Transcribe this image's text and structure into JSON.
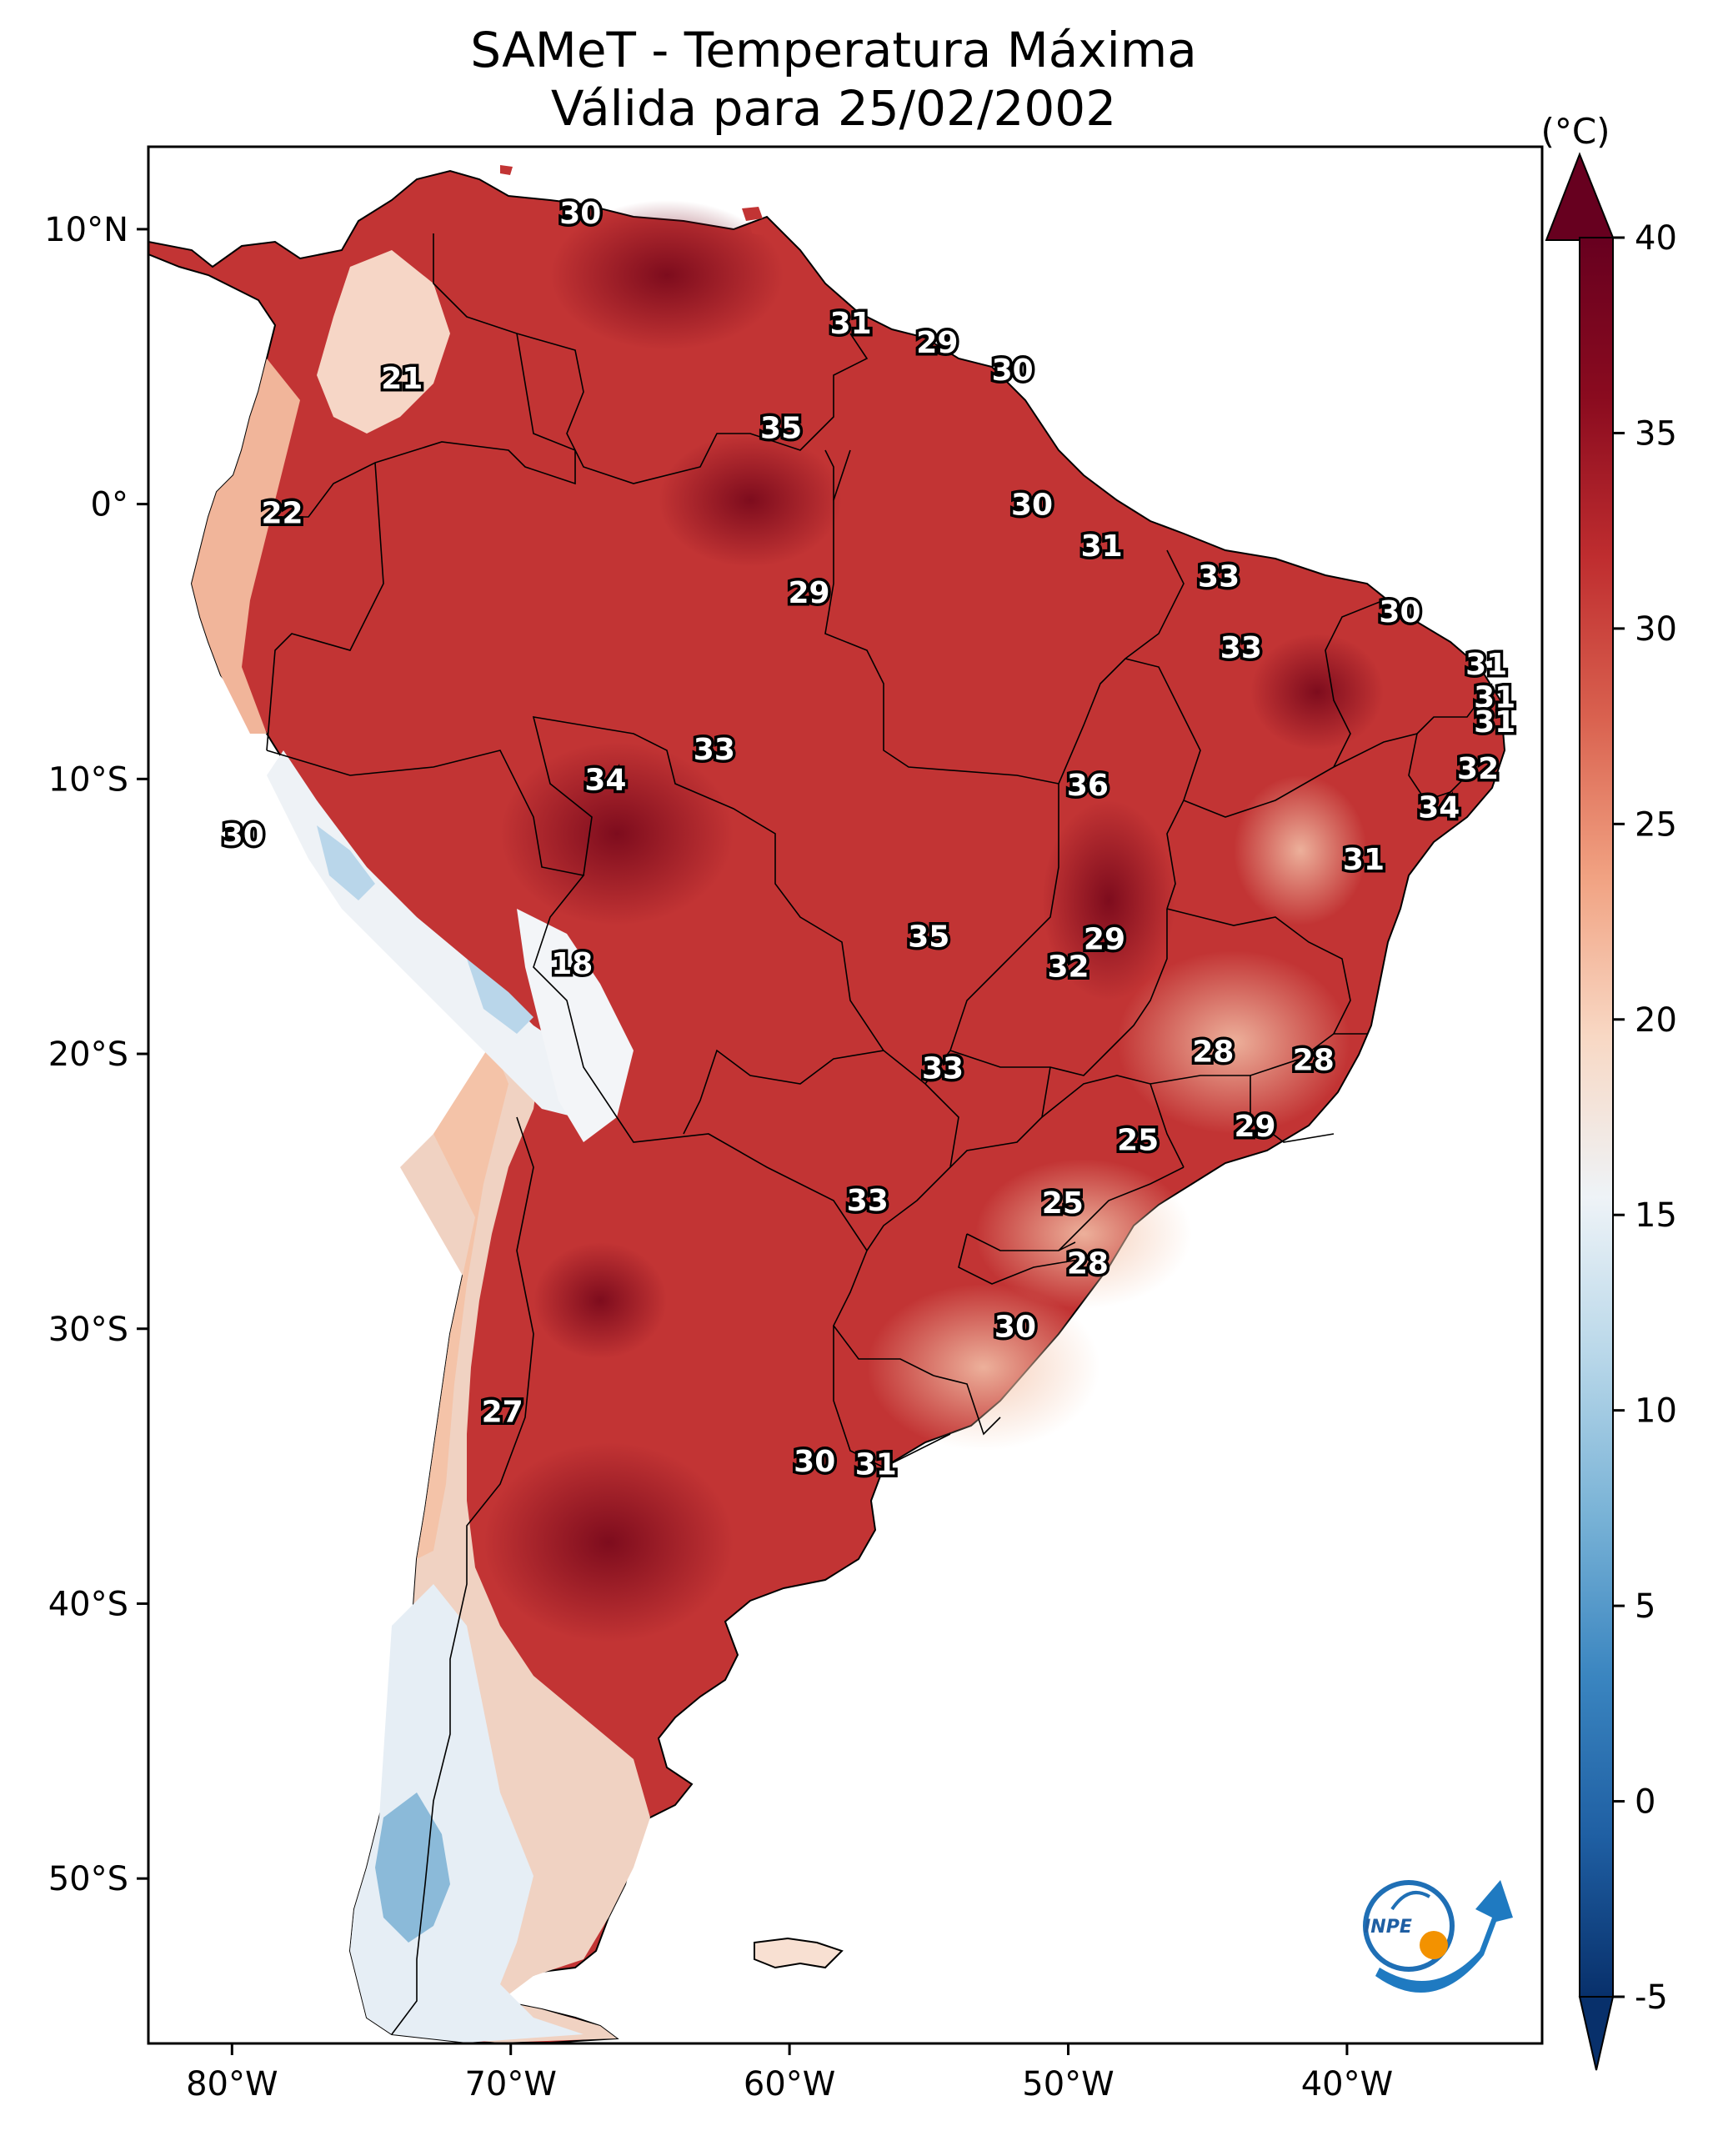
{
  "title_line1": "SAMeT - Temperatura Máxima",
  "title_line2": "Válida para 25/02/2002",
  "colorbar": {
    "unit": "(°C)",
    "min": -5,
    "max": 40,
    "ticks": [
      -5,
      0,
      5,
      10,
      15,
      20,
      25,
      30,
      35,
      40
    ],
    "tick_labels": [
      "-5",
      "0",
      "5",
      "10",
      "15",
      "20",
      "25",
      "30",
      "35",
      "40"
    ],
    "colors": [
      "#08306b",
      "#1f5fa3",
      "#3a85c0",
      "#78b2d6",
      "#b8d7e9",
      "#eef3f7",
      "#f8d8c4",
      "#f1a282",
      "#d9614f",
      "#bf2d2f",
      "#8a0b1f",
      "#67001f"
    ]
  },
  "axes": {
    "lon_ticks": [
      -80,
      -70,
      -60,
      -50,
      -40
    ],
    "lon_labels": [
      "80°W",
      "70°W",
      "60°W",
      "50°W",
      "40°W"
    ],
    "lat_ticks": [
      10,
      0,
      -10,
      -20,
      -30,
      -40,
      -50
    ],
    "lat_labels": [
      "10°N",
      "0°",
      "10°S",
      "20°S",
      "30°S",
      "40°S",
      "50°S"
    ],
    "lon_range": [
      -83,
      -33
    ],
    "lat_range": [
      -56,
      13
    ]
  },
  "logo_text": "INPE",
  "contour_labels": [
    {
      "text": "30",
      "lon": -67.5,
      "lat": 10.6
    },
    {
      "text": "31",
      "lon": -57.8,
      "lat": 6.6
    },
    {
      "text": "29",
      "lon": -54.7,
      "lat": 5.9
    },
    {
      "text": "30",
      "lon": -52.0,
      "lat": 4.9
    },
    {
      "text": "21",
      "lon": -73.9,
      "lat": 4.6
    },
    {
      "text": "35",
      "lon": -60.3,
      "lat": 2.8
    },
    {
      "text": "22",
      "lon": -78.2,
      "lat": -0.3
    },
    {
      "text": "30",
      "lon": -51.3,
      "lat": 0.0
    },
    {
      "text": "31",
      "lon": -48.8,
      "lat": -1.5
    },
    {
      "text": "33",
      "lon": -44.6,
      "lat": -2.6
    },
    {
      "text": "29",
      "lon": -59.3,
      "lat": -3.2
    },
    {
      "text": "30",
      "lon": -38.1,
      "lat": -3.9
    },
    {
      "text": "33",
      "lon": -43.8,
      "lat": -5.2
    },
    {
      "text": "31",
      "lon": -35.0,
      "lat": -5.8
    },
    {
      "text": "31",
      "lon": -34.7,
      "lat": -7.0
    },
    {
      "text": "31",
      "lon": -34.7,
      "lat": -7.9
    },
    {
      "text": "33",
      "lon": -62.7,
      "lat": -8.9
    },
    {
      "text": "32",
      "lon": -35.3,
      "lat": -9.6
    },
    {
      "text": "34",
      "lon": -66.6,
      "lat": -10.0
    },
    {
      "text": "36",
      "lon": -49.3,
      "lat": -10.2
    },
    {
      "text": "34",
      "lon": -36.7,
      "lat": -11.0
    },
    {
      "text": "30",
      "lon": -79.6,
      "lat": -12.0
    },
    {
      "text": "31",
      "lon": -39.4,
      "lat": -12.9
    },
    {
      "text": "35",
      "lon": -55.0,
      "lat": -15.7
    },
    {
      "text": "29",
      "lon": -48.7,
      "lat": -15.8
    },
    {
      "text": "18",
      "lon": -67.8,
      "lat": -16.7
    },
    {
      "text": "32",
      "lon": -50.0,
      "lat": -16.8
    },
    {
      "text": "28",
      "lon": -44.8,
      "lat": -19.9
    },
    {
      "text": "28",
      "lon": -41.2,
      "lat": -20.2
    },
    {
      "text": "33",
      "lon": -54.5,
      "lat": -20.5
    },
    {
      "text": "29",
      "lon": -43.3,
      "lat": -22.6
    },
    {
      "text": "25",
      "lon": -47.5,
      "lat": -23.1
    },
    {
      "text": "33",
      "lon": -57.2,
      "lat": -25.3
    },
    {
      "text": "25",
      "lon": -50.2,
      "lat": -25.4
    },
    {
      "text": "28",
      "lon": -49.3,
      "lat": -27.6
    },
    {
      "text": "30",
      "lon": -51.9,
      "lat": -29.9
    },
    {
      "text": "27",
      "lon": -70.3,
      "lat": -33.0
    },
    {
      "text": "30",
      "lon": -59.1,
      "lat": -34.8
    },
    {
      "text": "31",
      "lon": -56.9,
      "lat": -34.9
    }
  ]
}
